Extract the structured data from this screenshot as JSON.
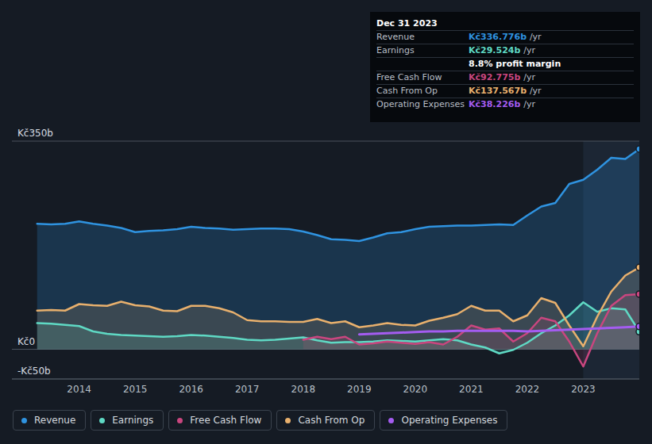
{
  "chart_data": {
    "type": "line",
    "x": [
      2013.25,
      2013.5,
      2013.75,
      2014,
      2014.25,
      2014.5,
      2014.75,
      2015,
      2015.25,
      2015.5,
      2015.75,
      2016,
      2016.25,
      2016.5,
      2016.75,
      2017,
      2017.25,
      2017.5,
      2017.75,
      2018,
      2018.25,
      2018.5,
      2018.75,
      2019,
      2019.25,
      2019.5,
      2019.75,
      2020,
      2020.25,
      2020.5,
      2020.75,
      2021,
      2021.25,
      2021.5,
      2021.75,
      2022,
      2022.25,
      2022.5,
      2022.75,
      2023,
      2023.25,
      2023.5,
      2023.75,
      2024
    ],
    "xlim": [
      2012.8,
      2024.0
    ],
    "xticks": [
      2014,
      2015,
      2016,
      2017,
      2018,
      2019,
      2020,
      2021,
      2022,
      2023
    ],
    "ylim": [
      -50,
      350
    ],
    "yticks": [
      {
        "value": -50,
        "label": "-Kč50b"
      },
      {
        "value": 0,
        "label": "Kč0"
      },
      {
        "value": 350,
        "label": "Kč350b"
      }
    ],
    "grid": true,
    "legend": "bottom",
    "series": [
      {
        "name": "Revenue",
        "color": "#2f93e0",
        "type": "area",
        "values": [
          211,
          210,
          211,
          215,
          211,
          208,
          204,
          197,
          199,
          200,
          202,
          206,
          204,
          203,
          201,
          202,
          203,
          203,
          202,
          198,
          192,
          185,
          184,
          182,
          188,
          195,
          197,
          202,
          206,
          207,
          208,
          208,
          209,
          210,
          209,
          225,
          240,
          246,
          278,
          285,
          302,
          322,
          320,
          336.776
        ]
      },
      {
        "name": "Earnings",
        "color": "#5fd9c4",
        "type": "area",
        "values": [
          44,
          43,
          41,
          39,
          30,
          26,
          24,
          23,
          22,
          21,
          22,
          24,
          23,
          21,
          19,
          16,
          15,
          16,
          18,
          20,
          15,
          11,
          12,
          12,
          13,
          15,
          14,
          13,
          15,
          17,
          15,
          8,
          3,
          -7,
          -1,
          11,
          27,
          40,
          57,
          79,
          63,
          69,
          67,
          29.524
        ]
      },
      {
        "name": "Free Cash Flow",
        "color": "#c9467f",
        "type": "area",
        "values": [
          null,
          null,
          null,
          null,
          null,
          null,
          null,
          null,
          null,
          null,
          null,
          null,
          null,
          null,
          null,
          null,
          null,
          null,
          null,
          16,
          21,
          17,
          21,
          8,
          10,
          13,
          11,
          9,
          12,
          8,
          21,
          40,
          33,
          35,
          13,
          27,
          53,
          47,
          13,
          -29,
          27,
          73,
          91,
          92.775
        ]
      },
      {
        "name": "Cash From Op",
        "color": "#e8b06d",
        "type": "area",
        "values": [
          65,
          66,
          65,
          76,
          74,
          73,
          80,
          74,
          72,
          65,
          64,
          73,
          73,
          69,
          62,
          49,
          47,
          47,
          46,
          46,
          51,
          44,
          47,
          37,
          40,
          44,
          41,
          40,
          48,
          53,
          59,
          73,
          65,
          65,
          47,
          57,
          86,
          78,
          40,
          5,
          55,
          97,
          124,
          137.567
        ]
      },
      {
        "name": "Operating Expenses",
        "color": "#a45cf0",
        "type": "line",
        "values": [
          null,
          null,
          null,
          null,
          null,
          null,
          null,
          null,
          null,
          null,
          null,
          null,
          null,
          null,
          null,
          null,
          null,
          null,
          null,
          null,
          null,
          null,
          null,
          25,
          26,
          27,
          28,
          29,
          30,
          30,
          31,
          31,
          31,
          31,
          31,
          30,
          31,
          32,
          33,
          34,
          35,
          36,
          37,
          38.226
        ]
      }
    ],
    "annotations": {
      "tooltip": {
        "title": "Dec 31 2023",
        "rows": [
          {
            "label": "Revenue",
            "value": "Kč336.776b",
            "unit": "/yr"
          },
          {
            "label": "Earnings",
            "value": "Kč29.524b",
            "unit": "/yr"
          },
          {
            "value": "8.8% profit margin"
          },
          {
            "label": "Free Cash Flow",
            "value": "Kč92.775b",
            "unit": "/yr"
          },
          {
            "label": "Cash From Op",
            "value": "Kč137.567b",
            "unit": "/yr"
          },
          {
            "label": "Operating Expenses",
            "value": "Kč38.226b",
            "unit": "/yr"
          }
        ]
      }
    }
  }
}
